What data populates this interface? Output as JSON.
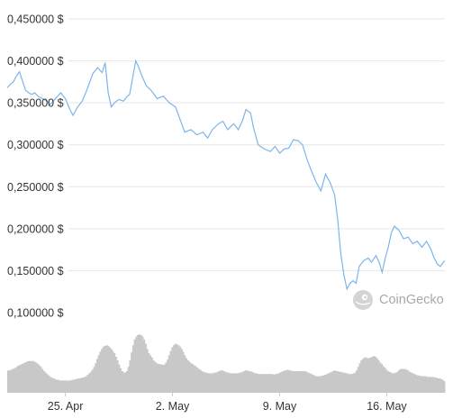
{
  "colors": {
    "line": "#7cb5ec",
    "volume": "#c8c8c8",
    "grid": "#e6e6e6",
    "watermark": "#a8a8a8"
  },
  "watermark": {
    "text": "CoinGecko",
    "icon": "gecko-logo-icon"
  },
  "chart_data": {
    "type": "line",
    "x_tick_labels": [
      "25. Apr",
      "2. May",
      "9. May",
      "16. May"
    ],
    "y_tick_labels": [
      "0,100000 $",
      "0,150000 $",
      "0,200000 $",
      "0,250000 $",
      "0,300000 $",
      "0,350000 $",
      "0,400000 $",
      "0,450000 $"
    ],
    "y_ticks": [
      0.1,
      0.15,
      0.2,
      0.25,
      0.3,
      0.35,
      0.4,
      0.45
    ],
    "ylim": [
      0.1,
      0.45
    ],
    "grid": true,
    "x_day_range": [
      -3.8,
      24.8
    ],
    "x_tick_days": [
      0,
      7,
      14,
      21
    ],
    "series": [
      {
        "values": [
          [
            -3.8,
            0.368
          ],
          [
            -3.6,
            0.372
          ],
          [
            -3.4,
            0.375
          ],
          [
            -3.2,
            0.382
          ],
          [
            -3.0,
            0.387
          ],
          [
            -2.8,
            0.376
          ],
          [
            -2.6,
            0.365
          ],
          [
            -2.4,
            0.362
          ],
          [
            -2.2,
            0.36
          ],
          [
            -2.0,
            0.362
          ],
          [
            -1.8,
            0.358
          ],
          [
            -1.5,
            0.355
          ],
          [
            -1.2,
            0.352
          ],
          [
            -1.0,
            0.348
          ],
          [
            -0.6,
            0.356
          ],
          [
            -0.3,
            0.362
          ],
          [
            0.0,
            0.355
          ],
          [
            0.3,
            0.342
          ],
          [
            0.5,
            0.335
          ],
          [
            0.8,
            0.345
          ],
          [
            1.1,
            0.352
          ],
          [
            1.4,
            0.365
          ],
          [
            1.8,
            0.385
          ],
          [
            2.1,
            0.392
          ],
          [
            2.4,
            0.386
          ],
          [
            2.6,
            0.398
          ],
          [
            2.8,
            0.362
          ],
          [
            3.0,
            0.345
          ],
          [
            3.2,
            0.35
          ],
          [
            3.5,
            0.354
          ],
          [
            3.8,
            0.352
          ],
          [
            4.0,
            0.357
          ],
          [
            4.2,
            0.36
          ],
          [
            4.4,
            0.38
          ],
          [
            4.6,
            0.4
          ],
          [
            4.8,
            0.392
          ],
          [
            5.0,
            0.382
          ],
          [
            5.3,
            0.37
          ],
          [
            5.6,
            0.365
          ],
          [
            6.0,
            0.355
          ],
          [
            6.4,
            0.358
          ],
          [
            6.8,
            0.35
          ],
          [
            7.2,
            0.345
          ],
          [
            7.5,
            0.33
          ],
          [
            7.8,
            0.315
          ],
          [
            8.2,
            0.318
          ],
          [
            8.6,
            0.312
          ],
          [
            9.0,
            0.315
          ],
          [
            9.3,
            0.308
          ],
          [
            9.6,
            0.318
          ],
          [
            10.0,
            0.325
          ],
          [
            10.3,
            0.328
          ],
          [
            10.6,
            0.318
          ],
          [
            11.0,
            0.325
          ],
          [
            11.3,
            0.318
          ],
          [
            11.6,
            0.33
          ],
          [
            11.8,
            0.342
          ],
          [
            12.1,
            0.338
          ],
          [
            12.3,
            0.32
          ],
          [
            12.6,
            0.3
          ],
          [
            13.0,
            0.295
          ],
          [
            13.4,
            0.292
          ],
          [
            13.7,
            0.298
          ],
          [
            14.0,
            0.29
          ],
          [
            14.3,
            0.295
          ],
          [
            14.6,
            0.296
          ],
          [
            14.9,
            0.306
          ],
          [
            15.2,
            0.305
          ],
          [
            15.5,
            0.3
          ],
          [
            15.8,
            0.282
          ],
          [
            16.1,
            0.268
          ],
          [
            16.4,
            0.255
          ],
          [
            16.7,
            0.245
          ],
          [
            17.0,
            0.265
          ],
          [
            17.3,
            0.255
          ],
          [
            17.6,
            0.24
          ],
          [
            17.8,
            0.21
          ],
          [
            18.0,
            0.17
          ],
          [
            18.2,
            0.145
          ],
          [
            18.4,
            0.128
          ],
          [
            18.6,
            0.135
          ],
          [
            18.8,
            0.138
          ],
          [
            19.0,
            0.135
          ],
          [
            19.2,
            0.155
          ],
          [
            19.5,
            0.162
          ],
          [
            19.8,
            0.165
          ],
          [
            20.0,
            0.16
          ],
          [
            20.3,
            0.168
          ],
          [
            20.5,
            0.16
          ],
          [
            20.7,
            0.148
          ],
          [
            20.9,
            0.165
          ],
          [
            21.1,
            0.178
          ],
          [
            21.3,
            0.195
          ],
          [
            21.5,
            0.203
          ],
          [
            21.8,
            0.198
          ],
          [
            22.1,
            0.188
          ],
          [
            22.4,
            0.19
          ],
          [
            22.7,
            0.182
          ],
          [
            23.0,
            0.185
          ],
          [
            23.3,
            0.178
          ],
          [
            23.6,
            0.185
          ],
          [
            23.9,
            0.175
          ],
          [
            24.1,
            0.165
          ],
          [
            24.3,
            0.158
          ],
          [
            24.5,
            0.155
          ],
          [
            24.7,
            0.16
          ],
          [
            24.8,
            0.162
          ]
        ]
      }
    ],
    "volume": {
      "day_step": 0.1,
      "relative_values": [
        0.31,
        0.31,
        0.32,
        0.33,
        0.34,
        0.35,
        0.37,
        0.38,
        0.39,
        0.4,
        0.41,
        0.42,
        0.43,
        0.44,
        0.44,
        0.44,
        0.44,
        0.43,
        0.42,
        0.4,
        0.38,
        0.36,
        0.33,
        0.3,
        0.28,
        0.26,
        0.24,
        0.22,
        0.21,
        0.2,
        0.19,
        0.18,
        0.18,
        0.17,
        0.17,
        0.17,
        0.17,
        0.17,
        0.17,
        0.17,
        0.17,
        0.18,
        0.18,
        0.19,
        0.19,
        0.2,
        0.2,
        0.21,
        0.21,
        0.22,
        0.23,
        0.25,
        0.27,
        0.29,
        0.32,
        0.36,
        0.41,
        0.47,
        0.52,
        0.57,
        0.61,
        0.64,
        0.65,
        0.66,
        0.65,
        0.63,
        0.61,
        0.58,
        0.55,
        0.5,
        0.45,
        0.39,
        0.34,
        0.3,
        0.28,
        0.28,
        0.3,
        0.36,
        0.45,
        0.56,
        0.66,
        0.74,
        0.78,
        0.8,
        0.81,
        0.8,
        0.78,
        0.74,
        0.68,
        0.61,
        0.55,
        0.52,
        0.49,
        0.45,
        0.43,
        0.41,
        0.4,
        0.4,
        0.39,
        0.39,
        0.39,
        0.42,
        0.46,
        0.52,
        0.58,
        0.63,
        0.66,
        0.68,
        0.67,
        0.66,
        0.64,
        0.61,
        0.57,
        0.52,
        0.48,
        0.45,
        0.43,
        0.41,
        0.4,
        0.38,
        0.37,
        0.35,
        0.33,
        0.32,
        0.3,
        0.29,
        0.28,
        0.28,
        0.27,
        0.27,
        0.27,
        0.27,
        0.28,
        0.28,
        0.29,
        0.3,
        0.31,
        0.31,
        0.3,
        0.29,
        0.28,
        0.28,
        0.27,
        0.27,
        0.27,
        0.27,
        0.27,
        0.27,
        0.28,
        0.28,
        0.29,
        0.3,
        0.31,
        0.31,
        0.3,
        0.3,
        0.29,
        0.28,
        0.27,
        0.27,
        0.26,
        0.26,
        0.26,
        0.26,
        0.26,
        0.26,
        0.26,
        0.26,
        0.26,
        0.26,
        0.25,
        0.26,
        0.26,
        0.27,
        0.28,
        0.29,
        0.3,
        0.31,
        0.31,
        0.32,
        0.31,
        0.31,
        0.3,
        0.3,
        0.3,
        0.3,
        0.3,
        0.3,
        0.3,
        0.3,
        0.3,
        0.29,
        0.28,
        0.27,
        0.26,
        0.25,
        0.24,
        0.23,
        0.23,
        0.23,
        0.23,
        0.24,
        0.24,
        0.25,
        0.26,
        0.27,
        0.28,
        0.29,
        0.3,
        0.31,
        0.3,
        0.3,
        0.29,
        0.29,
        0.28,
        0.28,
        0.27,
        0.27,
        0.26,
        0.26,
        0.26,
        0.27,
        0.28,
        0.31,
        0.36,
        0.41,
        0.45,
        0.47,
        0.49,
        0.49,
        0.48,
        0.48,
        0.49,
        0.5,
        0.51,
        0.5,
        0.48,
        0.45,
        0.42,
        0.4,
        0.37,
        0.35,
        0.32,
        0.3,
        0.29,
        0.28,
        0.27,
        0.27,
        0.28,
        0.29,
        0.31,
        0.33,
        0.33,
        0.33,
        0.33,
        0.32,
        0.31,
        0.29,
        0.28,
        0.27,
        0.26,
        0.25,
        0.24,
        0.24,
        0.23,
        0.23,
        0.23,
        0.23,
        0.22,
        0.22,
        0.22,
        0.22,
        0.22,
        0.21,
        0.21,
        0.2,
        0.2,
        0.19,
        0.18,
        0.16
      ]
    }
  }
}
